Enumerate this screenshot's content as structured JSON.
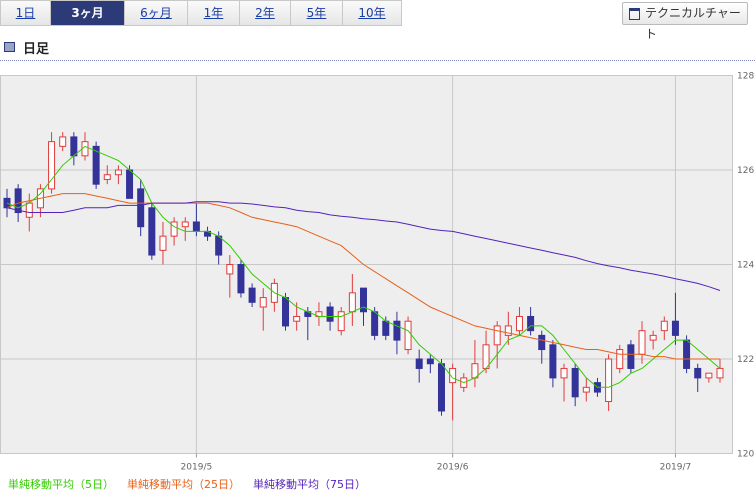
{
  "tabs": [
    "1日",
    "3ヶ月",
    "6ヶ月",
    "1年",
    "2年",
    "5年",
    "10年"
  ],
  "button": "テクニカルチャート",
  "header": "日足",
  "chart_data": {
    "type": "candlestick",
    "categories": [
      null,
      null,
      null,
      null,
      null,
      null,
      null,
      null,
      null,
      null,
      null,
      null,
      null,
      null,
      null,
      null,
      null,
      "2019/5",
      null,
      null,
      null,
      null,
      null,
      null,
      null,
      null,
      null,
      null,
      null,
      null,
      null,
      null,
      null,
      null,
      null,
      null,
      null,
      null,
      null,
      null,
      "2019/6",
      null,
      null,
      null,
      null,
      null,
      null,
      null,
      null,
      null,
      null,
      null,
      null,
      null,
      null,
      null,
      null,
      null,
      null,
      null,
      "2019/7",
      null,
      null,
      null,
      null
    ],
    "open": [
      125.4,
      125.6,
      125.0,
      125.2,
      125.6,
      126.5,
      126.7,
      126.3,
      126.5,
      125.8,
      125.9,
      126.0,
      125.6,
      125.2,
      124.3,
      124.6,
      124.8,
      124.9,
      124.7,
      124.6,
      123.8,
      124.0,
      123.5,
      123.1,
      123.2,
      123.3,
      122.8,
      123.0,
      122.9,
      123.1,
      122.6,
      123.0,
      123.5,
      123.0,
      122.8,
      122.8,
      122.2,
      122.0,
      122.0,
      121.9,
      121.5,
      121.4,
      121.6,
      121.8,
      122.3,
      122.5,
      122.6,
      122.9,
      122.5,
      122.3,
      121.6,
      121.8,
      121.3,
      121.5,
      121.1,
      121.8,
      122.3,
      122.1,
      122.4,
      122.6,
      122.8,
      122.4,
      121.8,
      121.6,
      121.6
    ],
    "high": [
      125.6,
      125.7,
      125.5,
      125.7,
      126.8,
      126.8,
      126.8,
      126.8,
      126.6,
      126.1,
      126.1,
      126.1,
      125.8,
      125.3,
      124.9,
      125.0,
      125.0,
      125.3,
      124.8,
      124.7,
      124.2,
      124.1,
      123.6,
      123.5,
      123.7,
      123.4,
      123.2,
      123.1,
      123.2,
      123.2,
      123.1,
      123.8,
      123.5,
      123.1,
      122.9,
      123.0,
      122.9,
      122.2,
      122.1,
      122.0,
      121.9,
      121.7,
      122.4,
      122.6,
      122.8,
      123.0,
      123.1,
      123.1,
      122.6,
      122.4,
      121.9,
      121.9,
      121.6,
      121.6,
      122.1,
      122.3,
      122.4,
      122.8,
      122.6,
      122.9,
      123.4,
      122.5,
      121.9,
      121.7,
      122.0
    ],
    "low": [
      125.0,
      124.9,
      124.7,
      125.0,
      125.5,
      126.4,
      126.1,
      126.2,
      125.6,
      125.7,
      125.7,
      125.4,
      124.6,
      124.1,
      124.0,
      124.4,
      124.5,
      124.6,
      124.5,
      124.0,
      123.3,
      123.3,
      123.1,
      122.6,
      123.0,
      122.6,
      122.6,
      122.4,
      122.7,
      122.6,
      122.5,
      122.7,
      122.7,
      122.4,
      122.4,
      122.1,
      122.1,
      121.5,
      121.7,
      120.8,
      120.7,
      121.3,
      121.4,
      121.7,
      121.8,
      122.3,
      122.5,
      122.5,
      121.9,
      121.4,
      121.1,
      121.0,
      121.1,
      121.2,
      120.9,
      121.7,
      121.7,
      121.9,
      122.2,
      122.4,
      122.3,
      121.7,
      121.3,
      121.5,
      121.5
    ],
    "close": [
      125.2,
      125.1,
      125.3,
      125.6,
      126.6,
      126.7,
      126.3,
      126.6,
      125.7,
      125.9,
      126.0,
      125.4,
      124.8,
      124.2,
      124.6,
      124.9,
      124.9,
      124.7,
      124.6,
      124.2,
      124.0,
      123.4,
      123.2,
      123.3,
      123.6,
      122.7,
      122.9,
      122.9,
      123.0,
      122.8,
      123.0,
      123.4,
      123.0,
      122.5,
      122.5,
      122.4,
      122.8,
      121.8,
      121.9,
      120.9,
      121.8,
      121.6,
      121.9,
      122.3,
      122.7,
      122.7,
      122.9,
      122.6,
      122.2,
      121.6,
      121.8,
      121.2,
      121.4,
      121.3,
      122.0,
      122.2,
      121.8,
      122.6,
      122.5,
      122.8,
      122.5,
      121.8,
      121.6,
      121.7,
      121.8
    ],
    "up_color": "#e03c3c",
    "down_color": "#333399",
    "series": [
      {
        "name": "単純移動平均（5日）",
        "color": "#33cc00",
        "values": [
          125.3,
          125.2,
          125.3,
          125.5,
          125.8,
          126.1,
          126.3,
          126.5,
          126.4,
          126.3,
          126.2,
          126.0,
          125.8,
          125.3,
          125.0,
          124.8,
          124.7,
          124.7,
          124.7,
          124.6,
          124.4,
          124.1,
          123.8,
          123.6,
          123.4,
          123.3,
          123.1,
          123.0,
          122.9,
          122.9,
          122.9,
          123.0,
          123.1,
          123.0,
          122.8,
          122.7,
          122.6,
          122.3,
          122.1,
          121.9,
          121.6,
          121.5,
          121.6,
          121.8,
          122.1,
          122.4,
          122.5,
          122.7,
          122.7,
          122.5,
          122.2,
          121.9,
          121.6,
          121.4,
          121.4,
          121.5,
          121.7,
          121.8,
          122.0,
          122.2,
          122.4,
          122.4,
          122.2,
          122.0,
          121.8
        ]
      },
      {
        "name": "単純移動平均（25日）",
        "color": "#e8601a",
        "values": [
          125.2,
          125.3,
          125.35,
          125.4,
          125.45,
          125.5,
          125.5,
          125.5,
          125.45,
          125.4,
          125.35,
          125.3,
          125.3,
          125.3,
          125.3,
          125.3,
          125.3,
          125.3,
          125.3,
          125.25,
          125.2,
          125.1,
          125.0,
          124.95,
          124.9,
          124.85,
          124.8,
          124.7,
          124.6,
          124.5,
          124.4,
          124.2,
          124.0,
          123.85,
          123.7,
          123.55,
          123.4,
          123.25,
          123.1,
          123.0,
          122.9,
          122.8,
          122.7,
          122.65,
          122.6,
          122.55,
          122.5,
          122.45,
          122.4,
          122.35,
          122.3,
          122.25,
          122.2,
          122.2,
          122.15,
          122.1,
          122.1,
          122.1,
          122.05,
          122.05,
          122.0,
          122.0,
          122.0,
          122.0,
          122.0
        ]
      },
      {
        "name": "単純移動平均（75日）",
        "color": "#5522bb",
        "values": [
          125.2,
          125.15,
          125.1,
          125.1,
          125.1,
          125.1,
          125.15,
          125.2,
          125.2,
          125.2,
          125.25,
          125.25,
          125.25,
          125.3,
          125.3,
          125.3,
          125.3,
          125.33,
          125.33,
          125.33,
          125.3,
          125.3,
          125.28,
          125.25,
          125.22,
          125.2,
          125.15,
          125.12,
          125.1,
          125.05,
          125.02,
          125.0,
          124.97,
          124.95,
          124.92,
          124.9,
          124.85,
          124.8,
          124.75,
          124.72,
          124.7,
          124.65,
          124.6,
          124.55,
          124.5,
          124.45,
          124.4,
          124.35,
          124.3,
          124.25,
          124.2,
          124.15,
          124.08,
          124.02,
          123.97,
          123.93,
          123.88,
          123.84,
          123.8,
          123.75,
          123.7,
          123.65,
          123.6,
          123.53,
          123.45
        ]
      }
    ],
    "ylim": [
      120,
      128
    ],
    "yticks": [
      120,
      122,
      124,
      126,
      128
    ],
    "grid": true
  }
}
